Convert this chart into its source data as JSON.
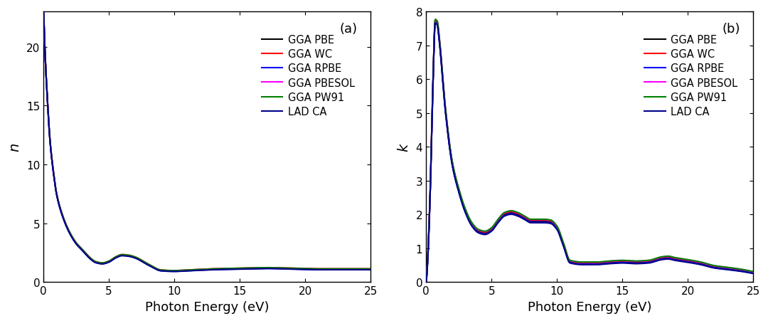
{
  "title_a": "(a)",
  "title_b": "(b)",
  "xlabel": "Photon Energy (eV)",
  "ylabel_a": "n",
  "ylabel_b": "k",
  "xlim": [
    0,
    25
  ],
  "ylim_a": [
    0,
    23
  ],
  "ylim_b": [
    0,
    8
  ],
  "xticks_a": [
    0,
    5,
    10,
    15,
    20,
    25
  ],
  "xticks_b": [
    0,
    5,
    10,
    15,
    20,
    25
  ],
  "yticks_a": [
    0,
    5,
    10,
    15,
    20
  ],
  "yticks_b": [
    0,
    1,
    2,
    3,
    4,
    5,
    6,
    7,
    8
  ],
  "legend_labels": [
    "GGA PBE",
    "GGA WC",
    "GGA RPBE",
    "GGA PBESOL",
    "GGA PW91",
    "LAD CA"
  ],
  "line_colors": [
    "#000000",
    "#ff0000",
    "#0000ff",
    "#ff00ff",
    "#008000",
    "#00008b"
  ],
  "line_widths": [
    1.5,
    1.5,
    1.5,
    1.5,
    1.5,
    1.5
  ],
  "n_knots_x": [
    0.01,
    0.1,
    0.3,
    0.5,
    0.8,
    1.0,
    1.5,
    2.0,
    2.5,
    3.0,
    3.5,
    4.0,
    4.5,
    5.0,
    5.5,
    6.0,
    6.5,
    7.0,
    8.0,
    9.0,
    10.0,
    11.0,
    13.0,
    15.0,
    17.0,
    19.0,
    21.0,
    23.0,
    25.0
  ],
  "n_knots_y": [
    23.0,
    20.0,
    15.5,
    12.0,
    9.0,
    7.5,
    5.5,
    4.2,
    3.3,
    2.7,
    2.1,
    1.7,
    1.6,
    1.75,
    2.1,
    2.3,
    2.25,
    2.1,
    1.5,
    1.0,
    0.95,
    1.0,
    1.1,
    1.15,
    1.2,
    1.15,
    1.1,
    1.1,
    1.1
  ],
  "k_knots_x": [
    0.01,
    0.1,
    0.3,
    0.5,
    0.7,
    0.85,
    1.0,
    1.5,
    2.0,
    2.5,
    3.0,
    3.5,
    4.0,
    4.5,
    5.0,
    5.5,
    6.0,
    6.5,
    7.0,
    7.5,
    8.0,
    9.0,
    9.5,
    10.0,
    10.5,
    11.0,
    12.0,
    13.0,
    14.0,
    15.0,
    16.0,
    17.0,
    18.0,
    18.5,
    19.0,
    20.0,
    21.0,
    22.0,
    23.0,
    24.0,
    25.0
  ],
  "k_knots_y": [
    0.0,
    0.5,
    2.5,
    5.5,
    7.7,
    7.65,
    7.2,
    5.0,
    3.5,
    2.7,
    2.1,
    1.7,
    1.5,
    1.45,
    1.55,
    1.8,
    2.0,
    2.05,
    2.0,
    1.9,
    1.8,
    1.8,
    1.78,
    1.6,
    1.1,
    0.6,
    0.55,
    0.55,
    0.58,
    0.6,
    0.58,
    0.6,
    0.7,
    0.72,
    0.68,
    0.62,
    0.55,
    0.45,
    0.4,
    0.35,
    0.28
  ],
  "n_offsets": [
    0.0,
    0.06,
    -0.04,
    0.03,
    0.05,
    -0.06
  ],
  "k_offsets": [
    0.0,
    0.04,
    -0.03,
    0.06,
    0.07,
    -0.05
  ]
}
